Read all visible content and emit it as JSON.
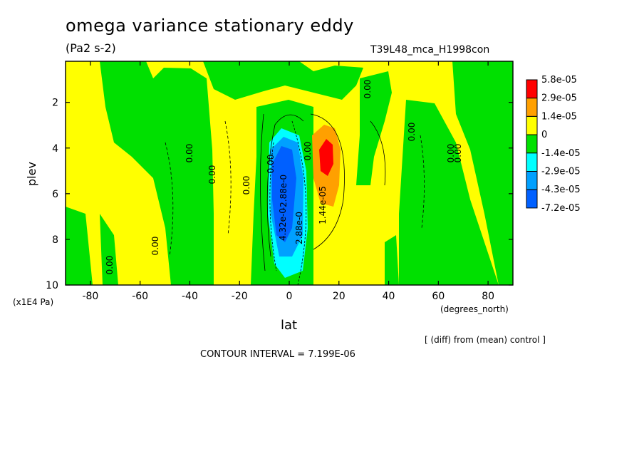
{
  "chart_data": {
    "type": "heatmap",
    "title": "omega variance stationary eddy",
    "units": "(Pa2 s-2)",
    "run_id": "T39L48_mca_H1998con",
    "xlabel": "lat",
    "xunits": "(degrees_north)",
    "ylabel": "plev",
    "yunits": "(x1E4 Pa)",
    "xlim": [
      -90,
      90
    ],
    "ylim": [
      10,
      0.2
    ],
    "xticks": [
      -80,
      -60,
      -40,
      -20,
      0,
      20,
      40,
      60,
      80
    ],
    "yticks": [
      2,
      4,
      6,
      8,
      10
    ],
    "legend": {
      "placement": "right",
      "levels": [
        "5.8e-05",
        "2.9e-05",
        "1.4e-05",
        "0",
        "-1.4e-05",
        "-2.9e-05",
        "-4.3e-05",
        "-7.2e-05"
      ],
      "colors": [
        "#ff0000",
        "#ffa000",
        "#ffff00",
        "#00e000",
        "#00ffff",
        "#00a0ff",
        "#0060ff"
      ]
    },
    "regions": [
      {
        "name": "positive anomaly",
        "lat": [
          8,
          22
        ],
        "plev": [
          3,
          9
        ],
        "peak": "5.8e-05",
        "peak_at": {
          "lat": 14,
          "plev": 4.4
        }
      },
      {
        "name": "negative anomaly",
        "lat": [
          -8,
          6
        ],
        "plev": [
          3.5,
          10
        ],
        "peak": "-7.2e-05",
        "peak_at": {
          "lat": -1,
          "plev": 5.5
        }
      },
      {
        "name": "negative band",
        "lat": [
          -80,
          -30
        ],
        "plev": [
          0.3,
          10
        ],
        "level": "-1.4e-05"
      },
      {
        "name": "negative band",
        "lat": [
          45,
          68
        ],
        "plev": [
          0.3,
          10
        ],
        "level": "-1.4e-05"
      }
    ],
    "contour_labels": [
      "0.00",
      "1.44e-05",
      "4.32e-0",
      "2.88e-0",
      "-2.88e-0"
    ],
    "contour_interval": "CONTOUR INTERVAL = 7.199E-06",
    "note": "[ (diff) from (mean) control ]"
  }
}
